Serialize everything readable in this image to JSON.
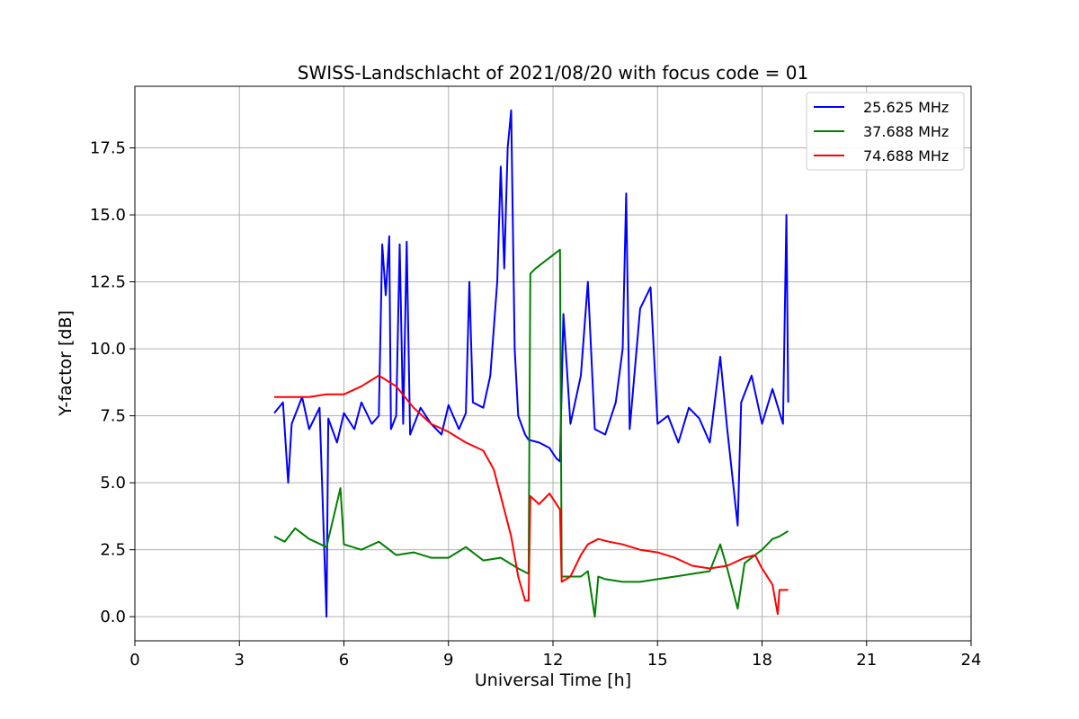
{
  "chart_data": {
    "type": "line",
    "title": "SWISS-Landschlacht of 2021/08/20 with focus code = 01",
    "xlabel": "Universal Time [h]",
    "ylabel": "Y-factor [dB]",
    "xlim": [
      0,
      24
    ],
    "ylim": [
      -0.9,
      19.8
    ],
    "xticks": [
      "0",
      "3",
      "6",
      "9",
      "12",
      "15",
      "18",
      "21",
      "24"
    ],
    "yticks": [
      "0.0",
      "2.5",
      "5.0",
      "7.5",
      "10.0",
      "12.5",
      "15.0",
      "17.5"
    ],
    "grid": true,
    "legend_position": "top-right",
    "series": [
      {
        "name": "25.625 MHz",
        "color": "#0000ff",
        "points": [
          [
            4.0,
            7.6
          ],
          [
            4.25,
            8.0
          ],
          [
            4.4,
            5.0
          ],
          [
            4.5,
            7.2
          ],
          [
            4.8,
            8.2
          ],
          [
            5.0,
            7.0
          ],
          [
            5.3,
            7.8
          ],
          [
            5.5,
            0.0
          ],
          [
            5.55,
            7.4
          ],
          [
            5.8,
            6.5
          ],
          [
            6.0,
            7.6
          ],
          [
            6.3,
            7.0
          ],
          [
            6.5,
            8.0
          ],
          [
            6.8,
            7.2
          ],
          [
            7.0,
            7.5
          ],
          [
            7.1,
            13.9
          ],
          [
            7.2,
            12.0
          ],
          [
            7.3,
            14.2
          ],
          [
            7.35,
            7.0
          ],
          [
            7.5,
            7.5
          ],
          [
            7.6,
            13.9
          ],
          [
            7.7,
            7.2
          ],
          [
            7.8,
            14.0
          ],
          [
            7.9,
            6.8
          ],
          [
            8.2,
            7.8
          ],
          [
            8.5,
            7.2
          ],
          [
            8.8,
            6.8
          ],
          [
            9.0,
            7.9
          ],
          [
            9.3,
            7.0
          ],
          [
            9.5,
            7.6
          ],
          [
            9.6,
            12.5
          ],
          [
            9.7,
            8.0
          ],
          [
            10.0,
            7.8
          ],
          [
            10.2,
            9.0
          ],
          [
            10.4,
            12.5
          ],
          [
            10.5,
            16.8
          ],
          [
            10.6,
            13.0
          ],
          [
            10.7,
            17.5
          ],
          [
            10.8,
            18.9
          ],
          [
            10.9,
            10.0
          ],
          [
            11.0,
            7.5
          ],
          [
            11.2,
            6.8
          ],
          [
            11.3,
            6.6
          ],
          [
            11.6,
            6.5
          ],
          [
            11.9,
            6.3
          ],
          [
            12.1,
            5.9
          ],
          [
            12.2,
            5.8
          ],
          [
            12.3,
            11.3
          ],
          [
            12.5,
            7.2
          ],
          [
            12.8,
            9.0
          ],
          [
            13.0,
            12.5
          ],
          [
            13.2,
            7.0
          ],
          [
            13.5,
            6.8
          ],
          [
            13.8,
            8.0
          ],
          [
            14.0,
            10.0
          ],
          [
            14.1,
            15.8
          ],
          [
            14.2,
            7.0
          ],
          [
            14.5,
            11.5
          ],
          [
            14.8,
            12.3
          ],
          [
            15.0,
            7.2
          ],
          [
            15.3,
            7.5
          ],
          [
            15.6,
            6.5
          ],
          [
            15.9,
            7.8
          ],
          [
            16.2,
            7.4
          ],
          [
            16.5,
            6.5
          ],
          [
            16.8,
            9.7
          ],
          [
            17.0,
            7.0
          ],
          [
            17.3,
            3.4
          ],
          [
            17.4,
            8.0
          ],
          [
            17.7,
            9.0
          ],
          [
            18.0,
            7.2
          ],
          [
            18.3,
            8.5
          ],
          [
            18.6,
            7.2
          ],
          [
            18.7,
            15.0
          ],
          [
            18.75,
            8.0
          ]
        ]
      },
      {
        "name": "37.688 MHz",
        "color": "#008000",
        "points": [
          [
            4.0,
            3.0
          ],
          [
            4.3,
            2.8
          ],
          [
            4.6,
            3.3
          ],
          [
            5.0,
            2.9
          ],
          [
            5.5,
            2.6
          ],
          [
            5.9,
            4.8
          ],
          [
            6.0,
            2.7
          ],
          [
            6.5,
            2.5
          ],
          [
            7.0,
            2.8
          ],
          [
            7.5,
            2.3
          ],
          [
            8.0,
            2.4
          ],
          [
            8.5,
            2.2
          ],
          [
            9.0,
            2.2
          ],
          [
            9.5,
            2.6
          ],
          [
            10.0,
            2.1
          ],
          [
            10.5,
            2.2
          ],
          [
            11.0,
            1.8
          ],
          [
            11.3,
            1.6
          ],
          [
            11.35,
            12.8
          ],
          [
            11.5,
            13.0
          ],
          [
            11.8,
            13.3
          ],
          [
            12.0,
            13.5
          ],
          [
            12.2,
            13.7
          ],
          [
            12.25,
            1.5
          ],
          [
            12.5,
            1.5
          ],
          [
            12.8,
            1.5
          ],
          [
            13.0,
            1.7
          ],
          [
            13.2,
            0.0
          ],
          [
            13.3,
            1.5
          ],
          [
            13.5,
            1.4
          ],
          [
            14.0,
            1.3
          ],
          [
            14.5,
            1.3
          ],
          [
            15.0,
            1.4
          ],
          [
            15.5,
            1.5
          ],
          [
            16.0,
            1.6
          ],
          [
            16.5,
            1.7
          ],
          [
            16.8,
            2.7
          ],
          [
            17.0,
            1.8
          ],
          [
            17.3,
            0.3
          ],
          [
            17.5,
            2.0
          ],
          [
            18.0,
            2.5
          ],
          [
            18.3,
            2.9
          ],
          [
            18.5,
            3.0
          ],
          [
            18.75,
            3.2
          ]
        ]
      },
      {
        "name": "74.688 MHz",
        "color": "#ff0000",
        "points": [
          [
            4.0,
            8.2
          ],
          [
            4.5,
            8.2
          ],
          [
            5.0,
            8.2
          ],
          [
            5.5,
            8.3
          ],
          [
            6.0,
            8.3
          ],
          [
            6.5,
            8.6
          ],
          [
            7.0,
            9.0
          ],
          [
            7.5,
            8.6
          ],
          [
            8.0,
            7.8
          ],
          [
            8.5,
            7.2
          ],
          [
            9.0,
            6.9
          ],
          [
            9.5,
            6.5
          ],
          [
            10.0,
            6.2
          ],
          [
            10.3,
            5.5
          ],
          [
            10.5,
            4.5
          ],
          [
            10.8,
            3.0
          ],
          [
            11.0,
            1.5
          ],
          [
            11.2,
            0.6
          ],
          [
            11.3,
            0.6
          ],
          [
            11.35,
            4.5
          ],
          [
            11.6,
            4.2
          ],
          [
            11.9,
            4.6
          ],
          [
            12.2,
            4.0
          ],
          [
            12.25,
            1.3
          ],
          [
            12.5,
            1.5
          ],
          [
            12.8,
            2.3
          ],
          [
            13.0,
            2.7
          ],
          [
            13.3,
            2.9
          ],
          [
            13.6,
            2.8
          ],
          [
            14.0,
            2.7
          ],
          [
            14.5,
            2.5
          ],
          [
            15.0,
            2.4
          ],
          [
            15.5,
            2.2
          ],
          [
            16.0,
            1.9
          ],
          [
            16.5,
            1.8
          ],
          [
            17.0,
            1.9
          ],
          [
            17.5,
            2.2
          ],
          [
            17.8,
            2.3
          ],
          [
            18.0,
            1.8
          ],
          [
            18.3,
            1.2
          ],
          [
            18.45,
            0.1
          ],
          [
            18.5,
            1.0
          ],
          [
            18.75,
            1.0
          ]
        ]
      }
    ]
  }
}
